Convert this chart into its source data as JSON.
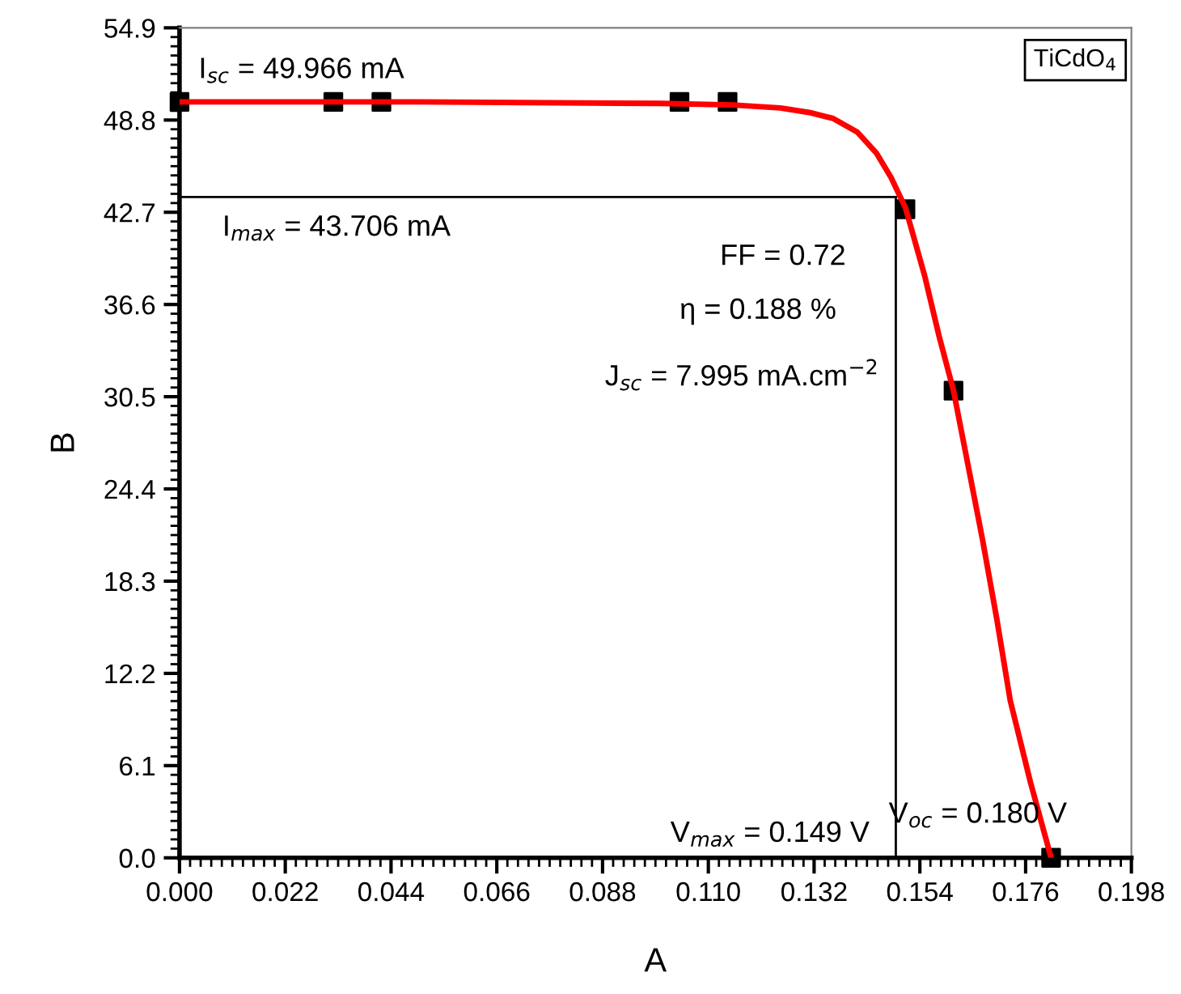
{
  "chart_data": {
    "type": "scatter",
    "xlabel": "A",
    "ylabel": "B",
    "xlim": [
      0,
      0.198
    ],
    "ylim": [
      0,
      54.9
    ],
    "xticks": [
      {
        "value": 0,
        "label": "0.000"
      },
      0.022,
      0.044,
      0.066,
      0.088,
      {
        "value": 0.11,
        "label": "0.110"
      },
      0.132,
      0.154,
      0.176,
      0.198
    ],
    "yticks": [
      {
        "value": 0,
        "label": "0.0"
      },
      6.1,
      12.2,
      18.3,
      24.4,
      30.5,
      36.6,
      42.7,
      48.8,
      54.9
    ],
    "grid": false,
    "series": [
      {
        "type": "line",
        "color": "#ff0000",
        "marker": "none",
        "line_style": "solid",
        "x": [
          0,
          0.05,
          0.1,
          0.115,
          0.125,
          0.131,
          0.136,
          0.141,
          0.145,
          0.148,
          0.151,
          0.155,
          0.158,
          0.161,
          0.164,
          0.167,
          0.17,
          0.1728,
          0.177,
          0.1813
        ],
        "values": [
          50.0,
          50.0,
          49.9,
          49.8,
          49.6,
          49.3,
          48.9,
          48.0,
          46.6,
          45.0,
          43.0,
          38.5,
          34.5,
          30.9,
          26.0,
          21.1,
          15.8,
          10.4,
          5.0,
          0
        ]
      },
      {
        "type": "scatter",
        "color": "#000000",
        "marker": "square",
        "x": [
          0,
          0.032,
          0.042,
          0.104,
          0.114,
          0.151,
          0.161,
          0.1813
        ],
        "values": [
          50.0,
          50.0,
          50.0,
          50.0,
          50.0,
          42.9,
          30.9,
          0
        ]
      }
    ],
    "ref_lines": [
      {
        "axis": "y",
        "value": 43.706,
        "color": "#000000",
        "line_style": "solid"
      },
      {
        "axis": "x",
        "value": 0.149,
        "color": "#000000",
        "line_style": "solid"
      }
    ],
    "annotations": [
      "I$_{sc}$ = 49.966 mA",
      "I$_{max}$ = 43.706 mA",
      "FF = 0.72",
      "η = 0.188 %",
      "J$_{sc}$ = 7.995 mA.cm$^{−2}$",
      "V$_{max}$ = 0.149 V",
      "V$_{oc}$ = 0.180 V",
      "TiCdO$_{4}$"
    ]
  }
}
